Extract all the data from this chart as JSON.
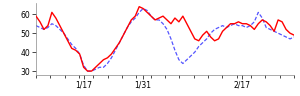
{
  "red_line": [
    59,
    56,
    52,
    54,
    61,
    58,
    54,
    50,
    46,
    42,
    41,
    39,
    32,
    30,
    30,
    32,
    34,
    36,
    37,
    39,
    42,
    45,
    49,
    53,
    57,
    59,
    64,
    63,
    61,
    59,
    57,
    58,
    59,
    57,
    55,
    58,
    56,
    59,
    55,
    51,
    47,
    46,
    49,
    51,
    48,
    46,
    47,
    51,
    53,
    55,
    55,
    56,
    55,
    55,
    54,
    52,
    55,
    57,
    56,
    54,
    51,
    57,
    56,
    52,
    50,
    49
  ],
  "blue_line": [
    54,
    53,
    52,
    53,
    55,
    54,
    52,
    50,
    47,
    44,
    42,
    39,
    33,
    30,
    30,
    31,
    32,
    32,
    34,
    37,
    41,
    45,
    49,
    53,
    56,
    58,
    61,
    63,
    62,
    59,
    57,
    57,
    55,
    52,
    47,
    41,
    36,
    34,
    36,
    38,
    40,
    43,
    45,
    47,
    50,
    52,
    53,
    54,
    53,
    54,
    55,
    54,
    54,
    53,
    54,
    56,
    61,
    58,
    53,
    52,
    51,
    50,
    49,
    48,
    47,
    48
  ],
  "red_color": "#ff0000",
  "blue_color": "#5555ff",
  "ylim": [
    28,
    66
  ],
  "yticks": [
    30,
    40,
    50,
    60
  ],
  "x_tick_labels": [
    "1/17",
    "1/31",
    "2/17"
  ],
  "x_tick_positions": [
    12,
    27,
    52
  ],
  "n_xticks_minor": 18,
  "background": "#ffffff",
  "red_linewidth": 1.0,
  "blue_linewidth": 0.9
}
